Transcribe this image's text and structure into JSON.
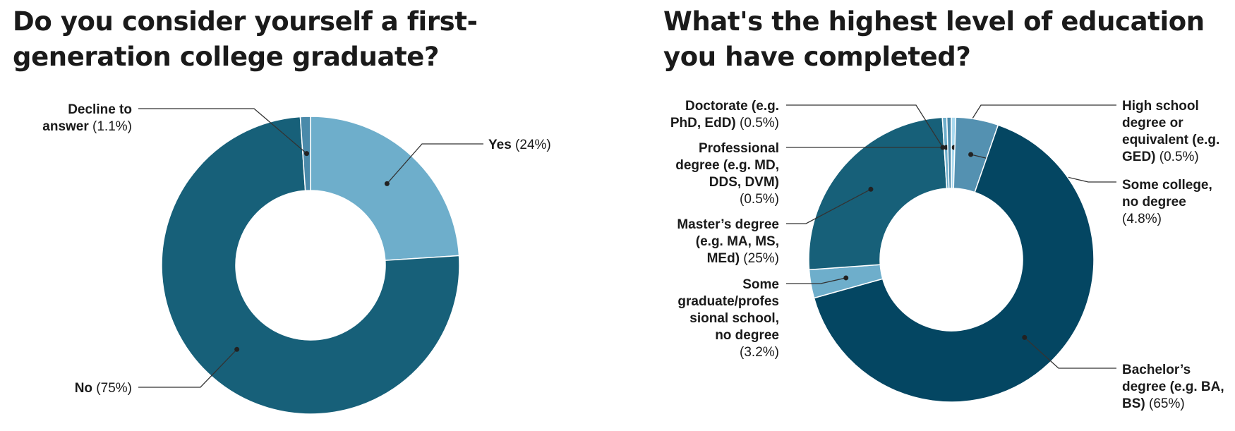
{
  "charts": {
    "left": {
      "title": "Do you consider yourself a first-generation college graduate?"
    },
    "right": {
      "title": "What's the highest level of education you have completed?"
    }
  },
  "chart_data": [
    {
      "type": "pie",
      "donut": true,
      "title": "Do you consider yourself a first-generation college graduate?",
      "slices": [
        {
          "label": "Yes",
          "pct_text": "(24%)",
          "value": 24,
          "color": "#6eaecb"
        },
        {
          "label": "No",
          "pct_text": "(75%)",
          "value": 75,
          "color": "#176079"
        },
        {
          "label": "Decline to answer",
          "pct_text": "(1.1%)",
          "value": 1.1,
          "color": "#4a8aaa"
        }
      ]
    },
    {
      "type": "pie",
      "donut": true,
      "title": "What's the highest level of education you have completed?",
      "slices": [
        {
          "label": "High school degree or equivalent (e.g. GED)",
          "pct_text": "(0.5%)",
          "value": 0.5,
          "color": "#a9d9ef"
        },
        {
          "label": "Some college, no degree",
          "pct_text": "(4.8%)",
          "value": 4.8,
          "color": "#5491b1"
        },
        {
          "label": "Bachelor’s degree (e.g. BA, BS)",
          "pct_text": "(65%)",
          "value": 65,
          "color": "#044662"
        },
        {
          "label": "Some graduate/professional school, no degree",
          "pct_text": "(3.2%)",
          "value": 3.2,
          "color": "#6eaecb"
        },
        {
          "label": "Master’s degree (e.g. MA, MS, MEd)",
          "pct_text": "(25%)",
          "value": 25,
          "color": "#176079"
        },
        {
          "label": "Professional degree (e.g. MD, DDS, DVM)",
          "pct_text": "(0.5%)",
          "value": 0.5,
          "color": "#6eaecb"
        },
        {
          "label": "Doctorate (e.g. PhD, EdD)",
          "pct_text": "(0.5%)",
          "value": 0.5,
          "color": "#4a8aaa"
        }
      ]
    }
  ]
}
